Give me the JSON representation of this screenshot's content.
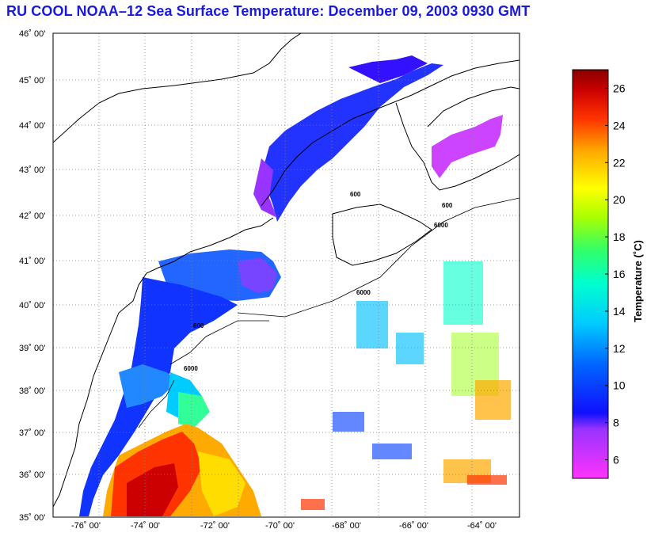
{
  "title": "RU COOL  NOAA–12  Sea Surface Temperature:  December 09, 2003 0930 GMT",
  "lat_labels": [
    "46˚ 00'",
    "45˚ 00'",
    "44˚ 00'",
    "43˚ 00'",
    "42˚ 00'",
    "41˚ 00'",
    "40˚ 00'",
    "39˚ 00'",
    "38˚ 00'",
    "37˚ 00'",
    "36˚ 00'",
    "35˚ 00'"
  ],
  "lon_labels": [
    "-76˚ 00'",
    "-74˚ 00'",
    "-72˚ 00'",
    "-70˚ 00'",
    "-68˚ 00'",
    "-66˚ 00'",
    "-64˚ 00'"
  ],
  "colorbar": {
    "label": "Temperature (˚C)",
    "ticks": [
      "26",
      "24",
      "22",
      "20",
      "18",
      "16",
      "14",
      "12",
      "10",
      "8",
      "6"
    ],
    "min": 5,
    "max": 27
  },
  "isobaths": [
    "600",
    "6000"
  ],
  "colors": {
    "title": "#1a1adc",
    "land": "#ffffff",
    "grid": "#808080"
  }
}
